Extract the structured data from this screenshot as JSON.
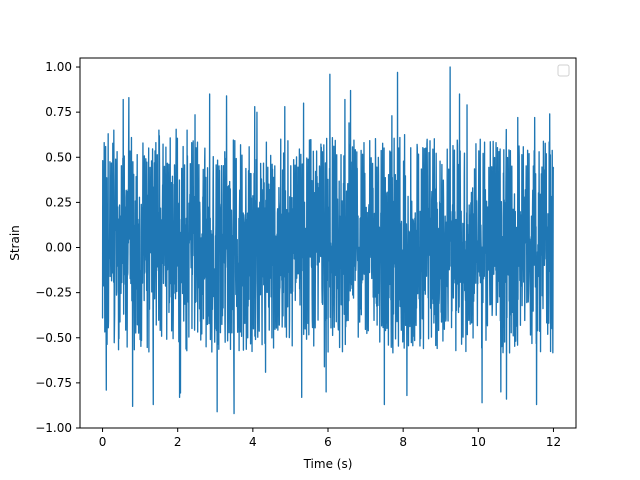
{
  "chart_data": {
    "type": "line",
    "title": "",
    "xlabel": "Time (s)",
    "ylabel": "Strain",
    "xlim": [
      -0.6,
      12.6
    ],
    "ylim": [
      -1.0,
      1.05
    ],
    "xticks": [
      0,
      2,
      4,
      6,
      8,
      10,
      12
    ],
    "xtick_labels": [
      "0",
      "2",
      "4",
      "6",
      "8",
      "10",
      "12"
    ],
    "yticks": [
      -1.0,
      -0.75,
      -0.5,
      -0.25,
      0.0,
      0.25,
      0.5,
      0.75,
      1.0
    ],
    "ytick_labels": [
      "−1.00",
      "−0.75",
      "−0.50",
      "−0.25",
      "0.00",
      "0.25",
      "0.50",
      "0.75",
      "1.00"
    ],
    "grid": false,
    "legend": {
      "position": "upper-right",
      "entries": []
    },
    "series_color": "#1f77b4",
    "signal": {
      "x_start": 0,
      "x_end": 12,
      "amplitude_range": [
        -0.92,
        1.0
      ],
      "typical_range": [
        -0.4,
        0.43
      ],
      "description_samples": [
        [
          0.0,
          -0.39
        ],
        [
          0.05,
          0.43
        ],
        [
          0.1,
          -0.79
        ],
        [
          0.15,
          0.63
        ],
        [
          0.3,
          0.65
        ],
        [
          0.55,
          0.82
        ],
        [
          0.7,
          0.83
        ],
        [
          0.8,
          -0.88
        ],
        [
          1.35,
          -0.87
        ],
        [
          1.5,
          0.65
        ],
        [
          2.05,
          -0.83
        ],
        [
          2.25,
          0.65
        ],
        [
          2.85,
          0.85
        ],
        [
          3.05,
          -0.91
        ],
        [
          3.3,
          0.84
        ],
        [
          3.5,
          -0.92
        ],
        [
          4.05,
          0.78
        ],
        [
          4.85,
          0.78
        ],
        [
          5.3,
          -0.83
        ],
        [
          5.35,
          0.8
        ],
        [
          5.95,
          -0.8
        ],
        [
          6.05,
          0.96
        ],
        [
          6.45,
          0.82
        ],
        [
          6.6,
          0.87
        ],
        [
          7.5,
          -0.87
        ],
        [
          7.7,
          0.73
        ],
        [
          7.85,
          0.97
        ],
        [
          8.1,
          -0.82
        ],
        [
          9.25,
          1.0
        ],
        [
          9.5,
          0.85
        ],
        [
          9.7,
          0.79
        ],
        [
          10.1,
          -0.86
        ],
        [
          10.6,
          -0.8
        ],
        [
          10.75,
          -0.84
        ],
        [
          11.05,
          0.72
        ],
        [
          11.5,
          0.72
        ],
        [
          11.55,
          -0.87
        ],
        [
          11.9,
          0.74
        ],
        [
          12.0,
          0.44
        ]
      ]
    }
  }
}
